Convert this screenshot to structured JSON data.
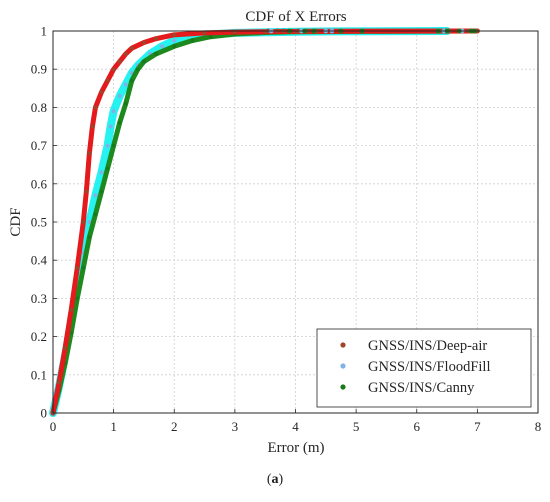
{
  "chart_data": {
    "type": "scatter",
    "title": "CDF of X Errors",
    "xlabel": "Error (m)",
    "ylabel": "CDF",
    "xlim": [
      0,
      8
    ],
    "ylim": [
      0,
      1
    ],
    "xticks": [
      "0",
      "1",
      "2",
      "3",
      "4",
      "5",
      "6",
      "7",
      "8"
    ],
    "yticks": [
      "0",
      "0.1",
      "0.2",
      "0.3",
      "0.4",
      "0.5",
      "0.6",
      "0.7",
      "0.8",
      "0.9",
      "1"
    ],
    "grid": true,
    "legend_position": "bottom-right",
    "series": [
      {
        "name": "GNSS/INS/Deep-air",
        "color": "#e41a1c",
        "marker_color": "#a0442a",
        "x": [
          0,
          0.1,
          0.2,
          0.3,
          0.4,
          0.5,
          0.55,
          0.6,
          0.65,
          0.7,
          0.8,
          0.9,
          1.0,
          1.1,
          1.2,
          1.3,
          1.5,
          1.7,
          2.0,
          2.5,
          3.0,
          3.5,
          4.0,
          4.5,
          7.0
        ],
        "y": [
          0,
          0.08,
          0.17,
          0.27,
          0.38,
          0.5,
          0.58,
          0.68,
          0.75,
          0.8,
          0.84,
          0.87,
          0.9,
          0.92,
          0.94,
          0.955,
          0.97,
          0.98,
          0.99,
          0.995,
          0.997,
          0.998,
          0.999,
          0.9995,
          1.0
        ]
      },
      {
        "name": "GNSS/INS/FloodFill",
        "color": "#00f0f0",
        "marker_color": "#7fb2e5",
        "x": [
          0,
          0.1,
          0.2,
          0.3,
          0.4,
          0.5,
          0.6,
          0.7,
          0.8,
          0.9,
          0.95,
          1.0,
          1.1,
          1.2,
          1.3,
          1.4,
          1.6,
          1.8,
          2.0,
          2.5,
          3.0,
          4.0,
          4.6,
          6.5
        ],
        "y": [
          0,
          0.07,
          0.15,
          0.24,
          0.33,
          0.42,
          0.5,
          0.57,
          0.63,
          0.7,
          0.75,
          0.79,
          0.83,
          0.86,
          0.89,
          0.91,
          0.94,
          0.96,
          0.975,
          0.99,
          0.995,
          0.998,
          0.999,
          1.0
        ]
      },
      {
        "name": "GNSS/INS/Canny",
        "color": "#1e8a1e",
        "marker_color": "#1a7a1a",
        "x": [
          0,
          0.1,
          0.2,
          0.3,
          0.4,
          0.5,
          0.6,
          0.7,
          0.8,
          0.9,
          1.0,
          1.1,
          1.2,
          1.3,
          1.4,
          1.5,
          1.7,
          2.0,
          2.3,
          2.6,
          3.0,
          3.5,
          4.0,
          5.1,
          6.9
        ],
        "y": [
          0,
          0.06,
          0.13,
          0.21,
          0.3,
          0.38,
          0.46,
          0.52,
          0.58,
          0.64,
          0.7,
          0.76,
          0.81,
          0.87,
          0.9,
          0.92,
          0.94,
          0.96,
          0.975,
          0.985,
          0.992,
          0.996,
          0.998,
          0.999,
          1.0
        ]
      }
    ],
    "outliers": [
      {
        "series": 0,
        "x": [
          3.55,
          3.7,
          3.8,
          4.05,
          4.2,
          4.35,
          6.4,
          6.55,
          6.85,
          7.0
        ]
      },
      {
        "series": 1,
        "x": [
          3.6,
          4.1,
          4.5,
          4.6,
          6.45,
          6.75
        ]
      },
      {
        "series": 2,
        "x": [
          3.9,
          4.15,
          4.3,
          4.75,
          5.1,
          6.35,
          6.5,
          6.7,
          6.9,
          6.95
        ]
      }
    ]
  },
  "caption": {
    "text": "a"
  }
}
